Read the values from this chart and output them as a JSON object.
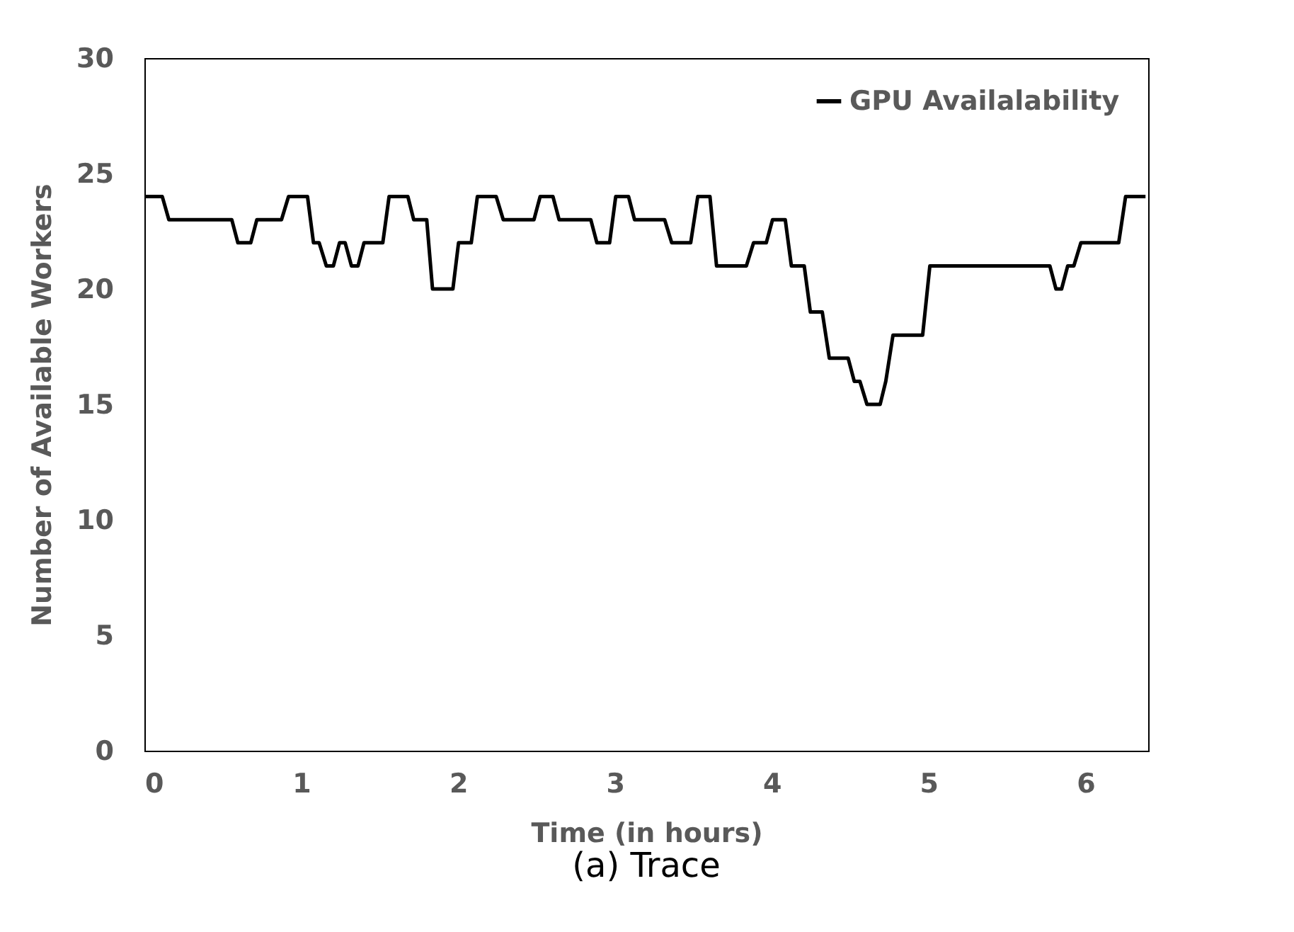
{
  "chart_data": {
    "type": "line",
    "xlabel": "Time (in hours)",
    "ylabel": "Number of Available Workers",
    "xlim": [
      0,
      6.4
    ],
    "xticks": [
      0,
      1,
      2,
      3,
      4,
      5,
      6
    ],
    "ylim": [
      0,
      30
    ],
    "yticks": [
      0,
      5,
      10,
      15,
      20,
      25,
      30
    ],
    "grid": false,
    "legend": "top right",
    "marker": "none",
    "line_style": "solid",
    "annotations": [
      "(a) Trace"
    ],
    "series": [
      {
        "name": "GPU Availalability",
        "color": "#000000",
        "x": [
          0,
          0.114,
          0.156,
          0.557,
          0.596,
          0.678,
          0.717,
          0.874,
          0.919,
          1.04,
          1.078,
          1.114,
          1.16,
          1.205,
          1.244,
          1.28,
          1.32,
          1.362,
          1.4,
          1.52,
          1.56,
          1.68,
          1.717,
          1.8,
          1.837,
          1.967,
          2.003,
          2.084,
          2.123,
          2.243,
          2.288,
          2.484,
          2.523,
          2.605,
          2.644,
          2.846,
          2.885,
          2.966,
          3.005,
          3.087,
          3.125,
          3.317,
          3.362,
          3.483,
          3.528,
          3.606,
          3.648,
          3.838,
          3.884,
          3.965,
          4.005,
          4.086,
          4.125,
          4.207,
          4.246,
          4.322,
          4.367,
          4.487,
          4.526,
          4.562,
          4.607,
          4.691,
          4.727,
          4.773,
          4.962,
          5.008,
          5.773,
          5.812,
          5.848,
          5.887,
          5.926,
          5.971,
          6.212,
          6.256,
          6.383
        ],
        "values": [
          24,
          24,
          23,
          23,
          22,
          22,
          23,
          23,
          24,
          24,
          22,
          22,
          21,
          21,
          22,
          22,
          21,
          21,
          22,
          22,
          24,
          24,
          23,
          23,
          20,
          20,
          22,
          22,
          24,
          24,
          23,
          23,
          24,
          24,
          23,
          23,
          22,
          22,
          24,
          24,
          23,
          23,
          22,
          22,
          24,
          24,
          21,
          21,
          22,
          22,
          23,
          23,
          21,
          21,
          19,
          19,
          17,
          17,
          16,
          16,
          15,
          15,
          16,
          18,
          18,
          21,
          21,
          20,
          20,
          21,
          21,
          22,
          22,
          24,
          24
        ]
      }
    ]
  }
}
